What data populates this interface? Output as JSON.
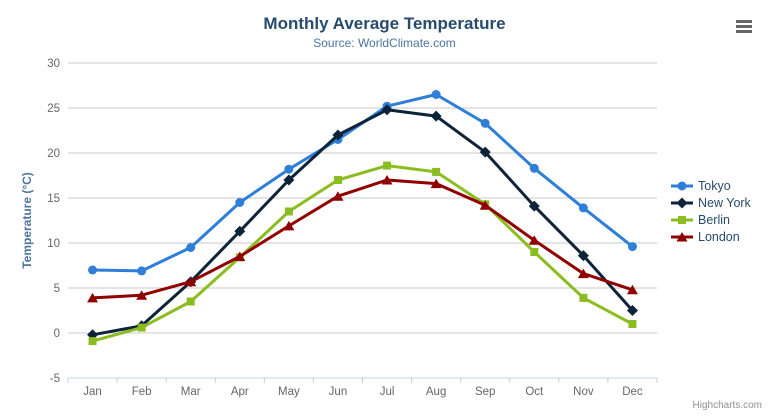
{
  "chart_data": {
    "type": "line",
    "title": "Monthly Average Temperature",
    "subtitle": "Source: WorldClimate.com",
    "xlabel": "",
    "ylabel": "Temperature (°C)",
    "ylim": [
      -5,
      30
    ],
    "ytick_step": 5,
    "grid": true,
    "legend_position": "right",
    "categories": [
      "Jan",
      "Feb",
      "Mar",
      "Apr",
      "May",
      "Jun",
      "Jul",
      "Aug",
      "Sep",
      "Oct",
      "Nov",
      "Dec"
    ],
    "series": [
      {
        "name": "Tokyo",
        "color": "#2f7ed8",
        "marker": "circle",
        "values": [
          7.0,
          6.9,
          9.5,
          14.5,
          18.2,
          21.5,
          25.2,
          26.5,
          23.3,
          18.3,
          13.9,
          9.6
        ]
      },
      {
        "name": "New York",
        "color": "#0d233a",
        "marker": "diamond",
        "values": [
          -0.2,
          0.8,
          5.7,
          11.3,
          17.0,
          22.0,
          24.8,
          24.1,
          20.1,
          14.1,
          8.6,
          2.5
        ]
      },
      {
        "name": "Berlin",
        "color": "#8bbc21",
        "marker": "square",
        "values": [
          -0.9,
          0.6,
          3.5,
          8.4,
          13.5,
          17.0,
          18.6,
          17.9,
          14.3,
          9.0,
          3.9,
          1.0
        ]
      },
      {
        "name": "London",
        "color": "#910000",
        "marker": "triangle",
        "values": [
          3.9,
          4.2,
          5.7,
          8.5,
          11.9,
          15.2,
          17.0,
          16.6,
          14.2,
          10.3,
          6.6,
          4.8
        ]
      }
    ]
  },
  "credit": {
    "label": "Highcharts.com"
  },
  "header": {
    "menu_icon": "hamburger-icon"
  },
  "colors": {
    "title": "#274b6d",
    "subtitle": "#4d759e",
    "axis_title": "#4d759e",
    "axis_labels": "#666666",
    "legend_text": "#274b6d",
    "gridline": "#c8c8c8",
    "axis_line": "#c0d0e0",
    "credit": "#909090",
    "menu_icon": "#666666"
  }
}
